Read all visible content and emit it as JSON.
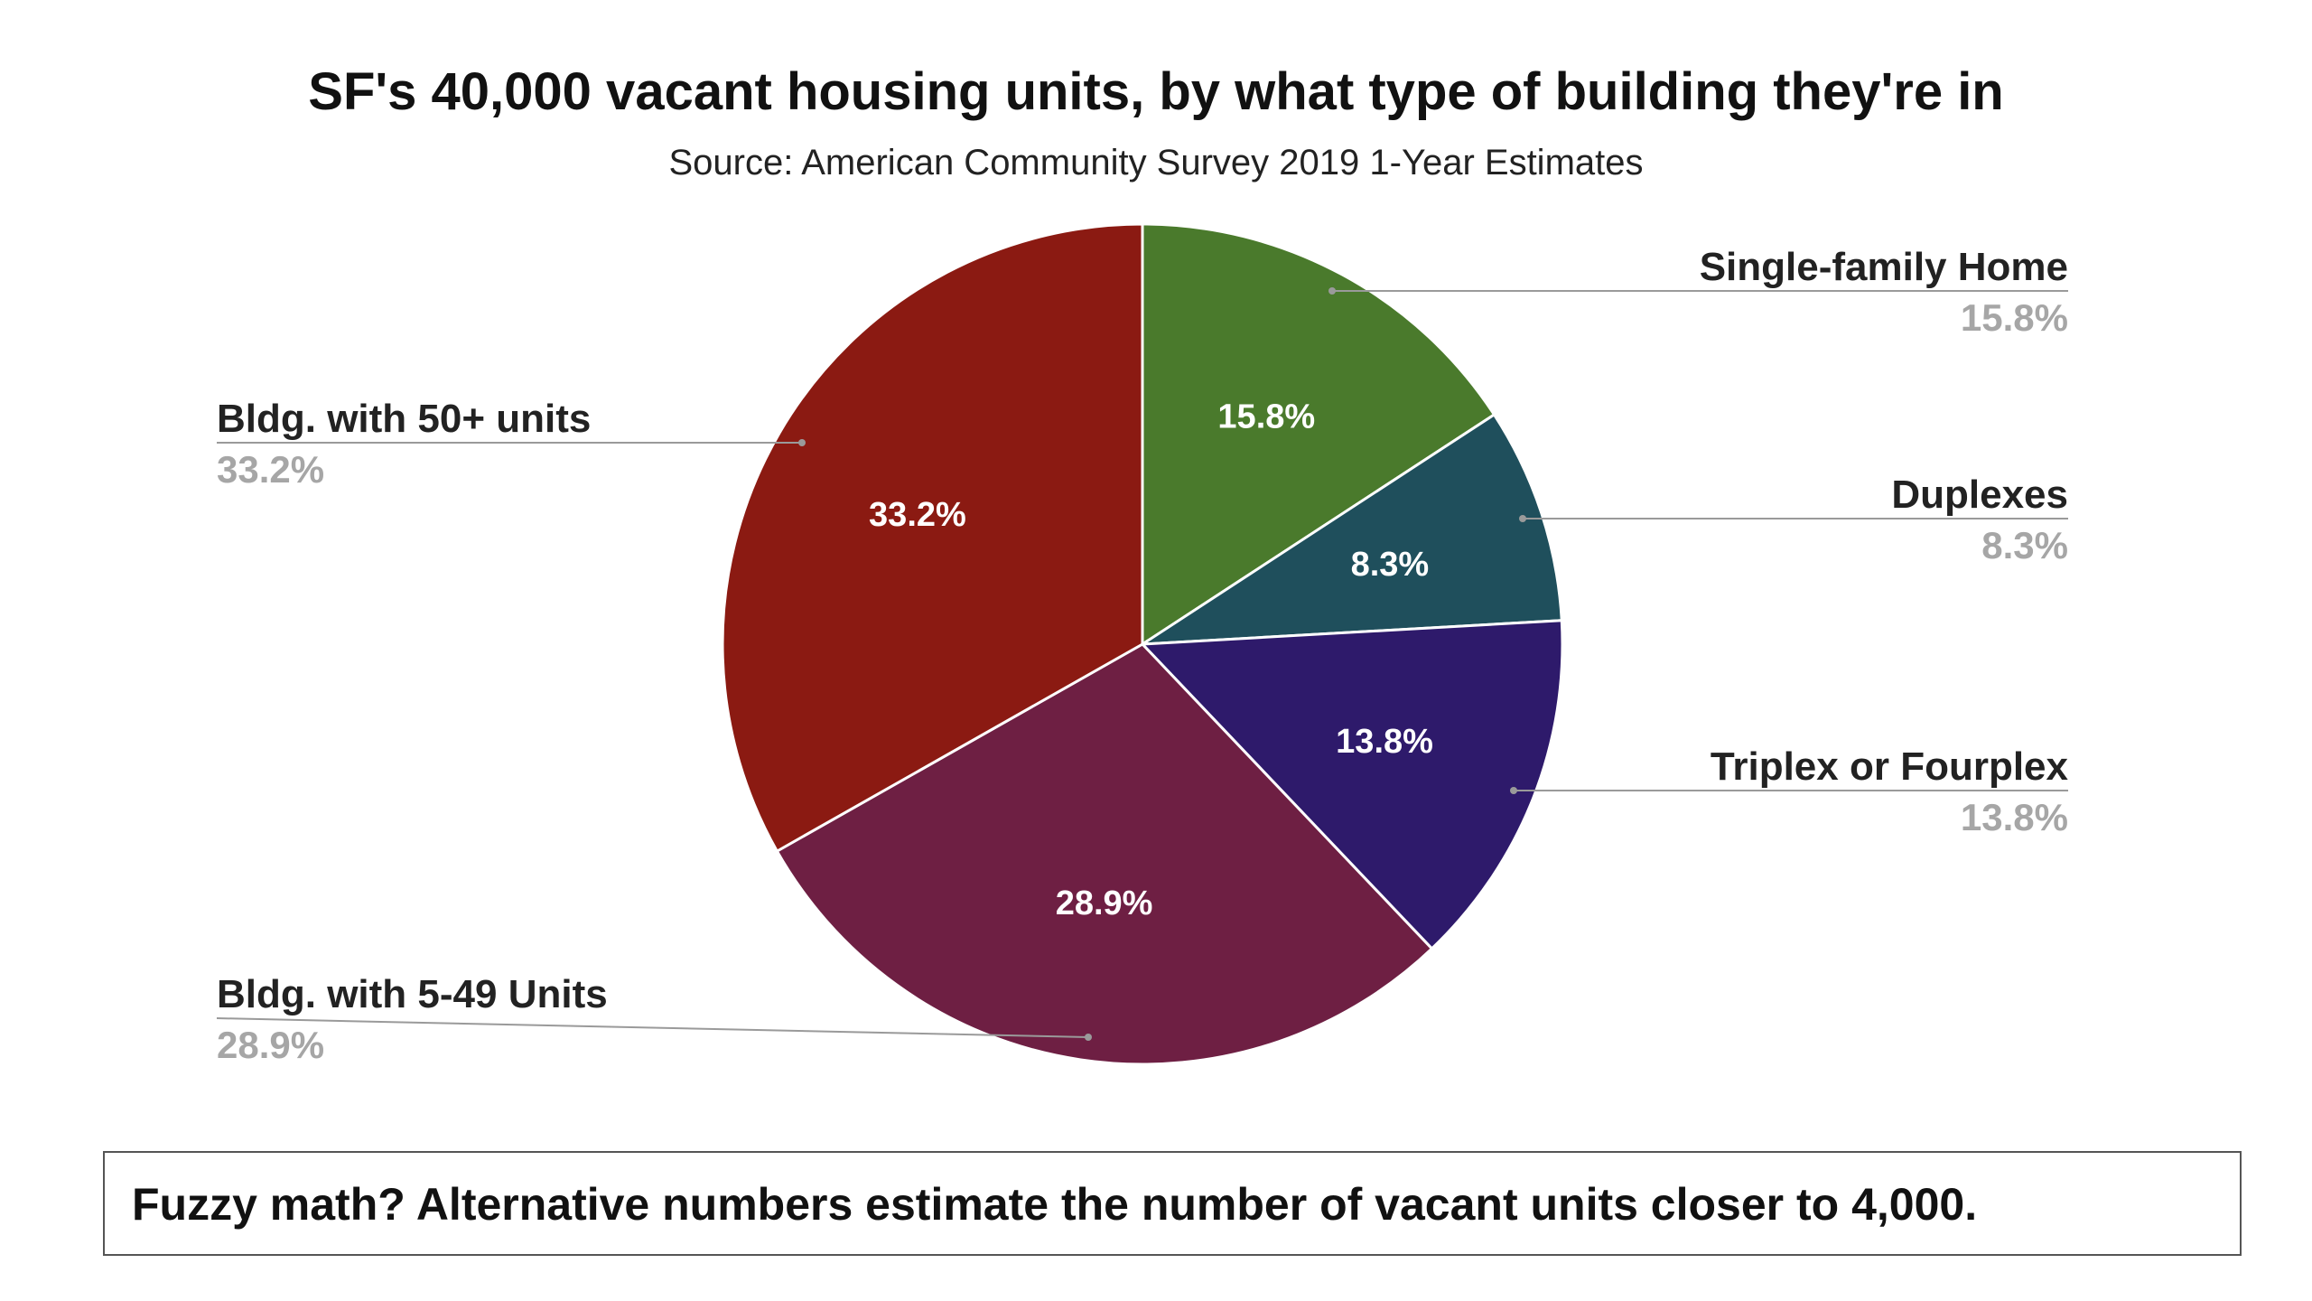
{
  "chart_data": {
    "type": "pie",
    "title": "SF's 40,000 vacant housing units, by what type of building they're in",
    "subtitle": "Source: American Community Survey 2019 1-Year Estimates",
    "slices": [
      {
        "label": "Single-family Home",
        "value": 15.8,
        "display": "15.8%",
        "color": "#4a7a2c"
      },
      {
        "label": "Duplexes",
        "value": 8.3,
        "display": "8.3%",
        "color": "#1f4f5c"
      },
      {
        "label": "Triplex or Fourplex",
        "value": 13.8,
        "display": "13.8%",
        "color": "#2e1a6b"
      },
      {
        "label": "Bldg. with 5-49 Units",
        "value": 28.9,
        "display": "28.9%",
        "color": "#6e1f43"
      },
      {
        "label": "Bldg. with 50+ units",
        "value": 33.2,
        "display": "33.2%",
        "color": "#8b1a12"
      }
    ],
    "legend": "callouts-outside",
    "start_angle": "12 o'clock, clockwise"
  },
  "note": "Fuzzy math? Alternative numbers estimate the number of vacant units closer to 4,000."
}
